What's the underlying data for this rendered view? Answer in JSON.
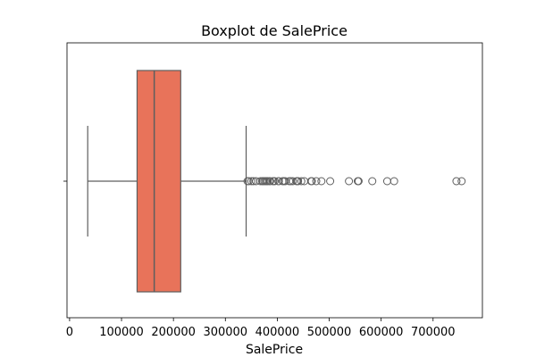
{
  "chart_data": {
    "type": "boxplot",
    "orientation": "horizontal",
    "title": "Boxplot de SalePrice",
    "xlabel": "SalePrice",
    "ylabel": "",
    "xlim": [
      -5000,
      795000
    ],
    "xticks": [
      0,
      100000,
      200000,
      300000,
      400000,
      500000,
      600000,
      700000
    ],
    "xtick_labels": [
      "0",
      "100000",
      "200000",
      "300000",
      "400000",
      "500000",
      "600000",
      "700000"
    ],
    "grid": false,
    "box": {
      "whisker_low": 34900,
      "q1": 129975,
      "median": 163000,
      "q3": 214000,
      "whisker_high": 340000
    },
    "outliers": [
      342643,
      345000,
      350000,
      354000,
      359100,
      367294,
      370878,
      372402,
      375000,
      377426,
      380000,
      381000,
      385000,
      386250,
      392000,
      392500,
      395000,
      402000,
      403000,
      410000,
      412500,
      415298,
      423000,
      426000,
      430000,
      437154,
      438780,
      440000,
      446261,
      451950,
      465000,
      466500,
      475000,
      485000,
      501837,
      538000,
      555000,
      556581,
      582933,
      611657,
      625000,
      745000,
      755000
    ],
    "colors": {
      "box_fill": "#e8735a",
      "line": "#5e5e5e",
      "outlier_edge": "#5e5e5e"
    }
  }
}
